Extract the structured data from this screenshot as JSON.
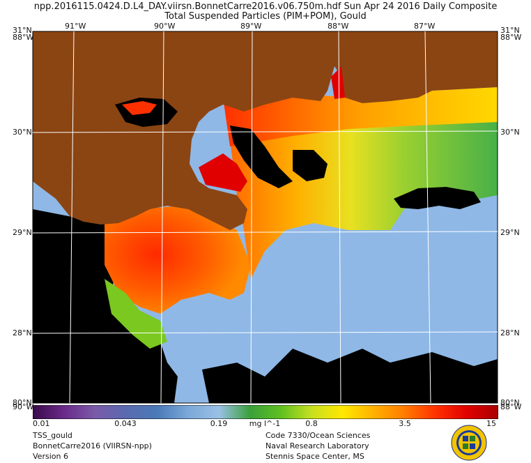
{
  "header": {
    "line1": "npp.2016115.0424.D.L4_DAY.viirsn.BonnetCarre2016.v06.750m.hdf     Sun Apr 24 2016 Daily Composite",
    "line2": "Total Suspended Particles (PIM+POM), Gould"
  },
  "map": {
    "lon_labels": [
      "91°W",
      "90°W",
      "89°W",
      "88°W",
      "87°W"
    ],
    "lat_labels": [
      "30°N",
      "29°N",
      "28°N"
    ],
    "corner_labels": {
      "top_left_lat": "31°N",
      "top_left_lon": "88°W",
      "top_right_lat": "31°N",
      "top_right_lon": "88°W",
      "bottom_left_lat": "80°N",
      "bottom_left_lon": "90°W",
      "bottom_right_lat": "80°N",
      "bottom_right_lon": "88°W"
    },
    "colors": {
      "land": "#8b4513",
      "no_data": "#000000",
      "clear_water": "#8fb8e6",
      "grid": "#ffffff"
    }
  },
  "colorbar": {
    "ticks": [
      "0.01",
      "0.043",
      "0.19",
      "0.8",
      "3.5",
      "15"
    ],
    "unit": "mg l^-1",
    "colors": [
      "#3a0a4a",
      "#6a2a8a",
      "#7a5aa8",
      "#5a6ab0",
      "#4a7ab8",
      "#7aa8d8",
      "#9ac0e6",
      "#3aa03a",
      "#60c020",
      "#c8e020",
      "#ffe800",
      "#ffb000",
      "#ff7a00",
      "#ff3000",
      "#e00000",
      "#a80000"
    ]
  },
  "footer": {
    "left": [
      "TSS_gould",
      "BonnetCarre2016 (VIIRSN-npp)",
      "Version 6"
    ],
    "right": [
      "Code 7330/Ocean Sciences",
      "Naval Research Laboratory",
      "Stennis Space Center, MS"
    ]
  },
  "logo": {
    "name": "naval-research-laboratory-seal"
  }
}
